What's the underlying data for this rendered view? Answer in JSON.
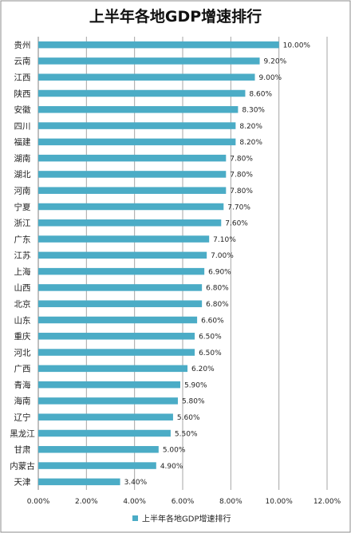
{
  "chart_data": {
    "type": "bar",
    "orientation": "horizontal",
    "title": "上半年各地GDP增速排行",
    "categories": [
      "贵州",
      "云南",
      "江西",
      "陕西",
      "安徽",
      "四川",
      "福建",
      "湖南",
      "湖北",
      "河南",
      "宁夏",
      "浙江",
      "广东",
      "江苏",
      "上海",
      "山西",
      "北京",
      "山东",
      "重庆",
      "河北",
      "广西",
      "青海",
      "海南",
      "辽宁",
      "黑龙江",
      "甘肃",
      "内蒙古",
      "天津"
    ],
    "series": [
      {
        "name": "上半年各地GDP增速排行",
        "values": [
          10.0,
          9.2,
          9.0,
          8.6,
          8.3,
          8.2,
          8.2,
          7.8,
          7.8,
          7.8,
          7.7,
          7.6,
          7.1,
          7.0,
          6.9,
          6.8,
          6.8,
          6.6,
          6.5,
          6.5,
          6.2,
          5.9,
          5.8,
          5.6,
          5.5,
          5.0,
          4.9,
          3.4
        ],
        "data_labels": [
          "10.00%",
          "9.20%",
          "9.00%",
          "8.60%",
          "8.30%",
          "8.20%",
          "8.20%",
          "7.80%",
          "7.80%",
          "7.80%",
          "7.70%",
          "7.60%",
          "7.10%",
          "7.00%",
          "6.90%",
          "6.80%",
          "6.80%",
          "6.60%",
          "6.50%",
          "6.50%",
          "6.20%",
          "5.90%",
          "5.80%",
          "5.60%",
          "5.50%",
          "5.00%",
          "4.90%",
          "3.40%"
        ]
      }
    ],
    "xlim": [
      0,
      12
    ],
    "xticks": [
      "0.00%",
      "2.00%",
      "4.00%",
      "6.00%",
      "8.00%",
      "10.00%",
      "12.00%"
    ],
    "grid": true,
    "legend_position": "bottom",
    "colors": {
      "bar": "#4BACC6",
      "grid": "#a6a6a6",
      "border": "#8c8c8c"
    }
  }
}
